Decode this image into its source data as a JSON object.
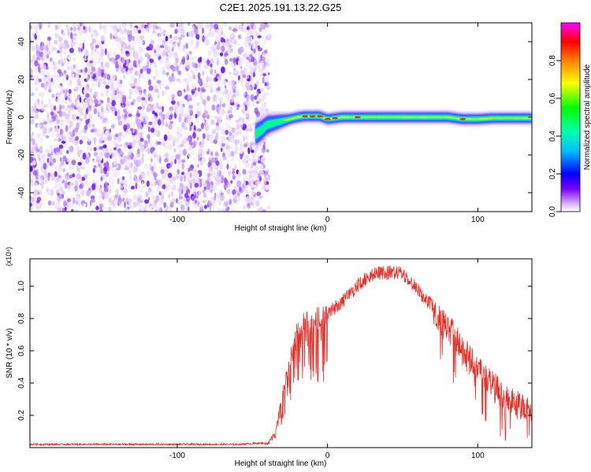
{
  "figure_title": "C2E1.2025.191.13.22.G25",
  "colorbar": {
    "label": "Normalized spectral amplitude",
    "range": [
      0,
      1
    ],
    "ticks": [
      "0.0",
      "0.2",
      "0.4",
      "0.6",
      "0.8"
    ],
    "tick_values": [
      0.0,
      0.2,
      0.4,
      0.6,
      0.8
    ]
  },
  "chart_data": [
    {
      "type": "heatmap",
      "xlabel": "Height of straight line (km)",
      "ylabel": "Frequency (Hz)",
      "xlim": [
        -198,
        136
      ],
      "ylim": [
        -50,
        50
      ],
      "xticks": [
        -100,
        0,
        100
      ],
      "xtick_labels": [
        "-100",
        "0",
        "100"
      ],
      "yticks": [
        -40,
        -20,
        0,
        20,
        40
      ],
      "ytick_labels": [
        "-40",
        "-20",
        "0",
        "20",
        "40"
      ],
      "noise_region_x": [
        -198,
        -42
      ],
      "signal_track": {
        "x": [
          -48,
          -44,
          -40,
          -35,
          -30,
          -25,
          -20,
          -15,
          -10,
          -5,
          0,
          5,
          10,
          20,
          30,
          40,
          50,
          60,
          70,
          80,
          90,
          100,
          110,
          120,
          136
        ],
        "freq_hz": [
          -9,
          -7,
          -4,
          -3,
          -2,
          -1,
          0,
          0.5,
          0.5,
          0.5,
          -1,
          -0.5,
          0,
          0,
          0,
          0,
          0,
          0,
          0,
          0,
          -1,
          -1,
          -0.5,
          -0.5,
          -0.5
        ],
        "peak_amplitude_x": [
          -15,
          -10,
          -5,
          0,
          5,
          20,
          90
        ]
      }
    },
    {
      "type": "line",
      "xlabel": "Height of straight line (km)",
      "ylabel": "SNR (10 * v/v)",
      "scale_note": "(x10⁴)",
      "xlim": [
        -198,
        136
      ],
      "ylim": [
        0,
        1.17
      ],
      "xticks": [
        -100,
        0,
        100
      ],
      "xtick_labels": [
        "-100",
        "0",
        "100"
      ],
      "yticks": [
        0.2,
        0.4,
        0.6,
        0.8,
        1.0
      ],
      "ytick_labels": [
        "0.2",
        "0.4",
        "0.6",
        "0.8",
        "1.0"
      ],
      "series": [
        {
          "color": "#e8302a",
          "envelope_x": [
            -198,
            -150,
            -100,
            -60,
            -40,
            -35,
            -32,
            -28,
            -25,
            -20,
            -15,
            -10,
            -5,
            0,
            10,
            20,
            30,
            40,
            45,
            50,
            55,
            60,
            70,
            80,
            85,
            90,
            95,
            100,
            110,
            120,
            136
          ],
          "envelope_y": [
            0.02,
            0.02,
            0.02,
            0.02,
            0.03,
            0.1,
            0.25,
            0.45,
            0.6,
            0.8,
            0.85,
            0.85,
            0.9,
            0.88,
            0.95,
            1.05,
            1.12,
            1.13,
            1.13,
            1.12,
            1.08,
            1.02,
            0.92,
            0.83,
            0.78,
            0.7,
            0.65,
            0.58,
            0.48,
            0.38,
            0.32
          ]
        }
      ]
    }
  ]
}
